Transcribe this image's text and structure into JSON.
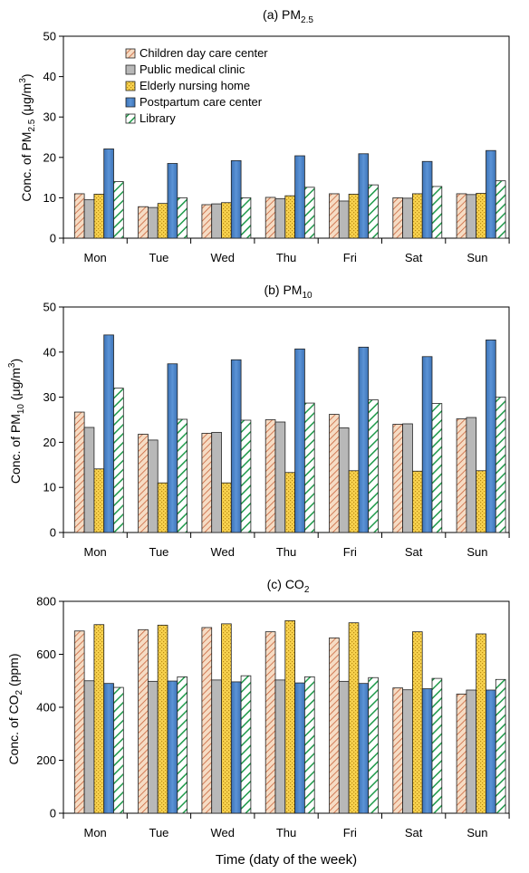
{
  "figure": {
    "xlabel": "Time (daty of the week)"
  },
  "chart_data": [
    {
      "type": "bar",
      "title": "(a) PM",
      "title_sub": "2.5",
      "ylabel": {
        "pre": "Conc. of PM",
        "sub": "2.5",
        "mid": " (μg/m",
        "sup": "3",
        "post": ")"
      },
      "xlabel": "",
      "ylim": [
        0,
        50
      ],
      "yticks": [
        0,
        10,
        20,
        30,
        40,
        50
      ],
      "categories": [
        "Mon",
        "Tue",
        "Wed",
        "Thu",
        "Fri",
        "Sat",
        "Sun"
      ],
      "legend_position": "top-left",
      "series": [
        {
          "name": "Children day care center",
          "values": [
            11.0,
            7.8,
            8.3,
            10.1,
            11.0,
            10.0,
            11.0
          ]
        },
        {
          "name": "Public medical clinic",
          "values": [
            9.5,
            7.6,
            8.5,
            9.8,
            9.2,
            9.9,
            10.8
          ]
        },
        {
          "name": "Elderly nursing home",
          "values": [
            10.9,
            8.6,
            8.8,
            10.5,
            10.9,
            11.0,
            11.1
          ]
        },
        {
          "name": "Postpartum care center",
          "values": [
            22.1,
            18.5,
            19.2,
            20.4,
            20.9,
            19.0,
            21.7
          ]
        },
        {
          "name": "Library",
          "values": [
            14.0,
            10.0,
            10.0,
            12.6,
            13.2,
            12.8,
            14.2
          ]
        }
      ]
    },
    {
      "type": "bar",
      "title": "(b) PM",
      "title_sub": "10",
      "ylabel": {
        "pre": "Conc. of PM",
        "sub": "10",
        "mid": " (μg/m",
        "sup": "3",
        "post": ")"
      },
      "xlabel": "",
      "ylim": [
        0,
        50
      ],
      "yticks": [
        0,
        10,
        20,
        30,
        40,
        50
      ],
      "categories": [
        "Mon",
        "Tue",
        "Wed",
        "Thu",
        "Fri",
        "Sat",
        "Sun"
      ],
      "series": [
        {
          "name": "Children day care center",
          "values": [
            26.7,
            21.8,
            22.0,
            25.0,
            26.2,
            24.0,
            25.2
          ]
        },
        {
          "name": "Public medical clinic",
          "values": [
            23.3,
            20.5,
            22.2,
            24.5,
            23.2,
            24.1,
            25.5
          ]
        },
        {
          "name": "Elderly nursing home",
          "values": [
            14.1,
            11.0,
            11.0,
            13.3,
            13.7,
            13.6,
            13.7
          ]
        },
        {
          "name": "Postpartum care center",
          "values": [
            43.8,
            37.4,
            38.3,
            40.7,
            41.1,
            39.0,
            42.7
          ]
        },
        {
          "name": "Library",
          "values": [
            32.0,
            25.1,
            24.9,
            28.7,
            29.4,
            28.6,
            30.0
          ]
        }
      ]
    },
    {
      "type": "bar",
      "title": "(c) CO",
      "title_sub": "2",
      "ylabel": {
        "pre": "Conc. of CO",
        "sub": "2",
        "mid": " (ppm)",
        "sup": "",
        "post": ""
      },
      "xlabel": "",
      "ylim": [
        0,
        800
      ],
      "yticks": [
        0,
        200,
        400,
        600,
        800
      ],
      "categories": [
        "Mon",
        "Tue",
        "Wed",
        "Thu",
        "Fri",
        "Sat",
        "Sun"
      ],
      "series": [
        {
          "name": "Children day care center",
          "values": [
            688,
            693,
            701,
            685,
            662,
            473,
            450
          ]
        },
        {
          "name": "Public medical clinic",
          "values": [
            500,
            498,
            503,
            503,
            498,
            466,
            465
          ]
        },
        {
          "name": "Elderly nursing home",
          "values": [
            712,
            710,
            715,
            727,
            719,
            685,
            677
          ]
        },
        {
          "name": "Postpartum care center",
          "values": [
            490,
            499,
            496,
            492,
            490,
            470,
            465
          ]
        },
        {
          "name": "Library",
          "values": [
            475,
            515,
            519,
            515,
            512,
            509,
            505
          ]
        }
      ]
    }
  ],
  "series_colors": [
    "#f4c6a0",
    "#b8b8b8",
    "#f7d65b",
    "#4f86c6",
    "#ffffff"
  ]
}
